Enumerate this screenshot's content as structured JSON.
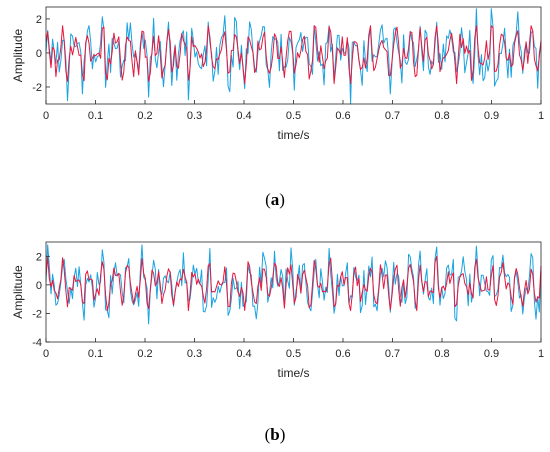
{
  "figure": {
    "captions": [
      "(a)",
      "(b)"
    ],
    "caption_parts": [
      {
        "open": "(",
        "letter": "a",
        "close": ")"
      },
      {
        "open": "(",
        "letter": "b",
        "close": ")"
      }
    ]
  },
  "colors": {
    "signal_blue": "#1aa3e0",
    "signal_red": "#e8173d",
    "axis": "#262626"
  },
  "chart_data": [
    {
      "type": "line",
      "panel": "a",
      "title": "",
      "xlabel": "time/s",
      "ylabel": "Amplitude",
      "xlim": [
        0,
        1
      ],
      "ylim": [
        -3,
        2.7
      ],
      "xticks": [
        0,
        0.1,
        0.2,
        0.3,
        0.4,
        0.5,
        0.6,
        0.7,
        0.8,
        0.9,
        1
      ],
      "xtick_labels": [
        "0",
        "0.1",
        "0.2",
        "0.3",
        "0.4",
        "0.5",
        "0.6",
        "0.7",
        "0.8",
        "0.9",
        "1"
      ],
      "yticks": [
        -2,
        0,
        2
      ],
      "ytick_labels": [
        "-2",
        "0",
        "2"
      ],
      "grid": false,
      "series": [
        {
          "color": "#1aa3e0",
          "points": 300,
          "seed": 11,
          "blend": 0.75,
          "envelope": [
            -3.0,
            2.6
          ]
        },
        {
          "color": "#e8173d",
          "points": 300,
          "seed": 11,
          "blend": 0.0,
          "envelope": [
            -1.8,
            1.6
          ]
        }
      ]
    },
    {
      "type": "line",
      "panel": "b",
      "title": "",
      "xlabel": "time/s",
      "ylabel": "Amplitude",
      "xlim": [
        0,
        1
      ],
      "ylim": [
        -4,
        3
      ],
      "xticks": [
        0,
        0.1,
        0.2,
        0.3,
        0.4,
        0.5,
        0.6,
        0.7,
        0.8,
        0.9,
        1
      ],
      "xtick_labels": [
        "0",
        "0.1",
        "0.2",
        "0.3",
        "0.4",
        "0.5",
        "0.6",
        "0.7",
        "0.8",
        "0.9",
        "1"
      ],
      "yticks": [
        -4,
        -2,
        0,
        2
      ],
      "ytick_labels": [
        "-4",
        "-2",
        "0",
        "2"
      ],
      "grid": false,
      "series": [
        {
          "color": "#1aa3e0",
          "points": 300,
          "seed": 29,
          "blend": 0.75,
          "envelope": [
            -3.4,
            2.8
          ]
        },
        {
          "color": "#e8173d",
          "points": 300,
          "seed": 29,
          "blend": 0.0,
          "envelope": [
            -1.8,
            2.0
          ]
        }
      ]
    }
  ]
}
